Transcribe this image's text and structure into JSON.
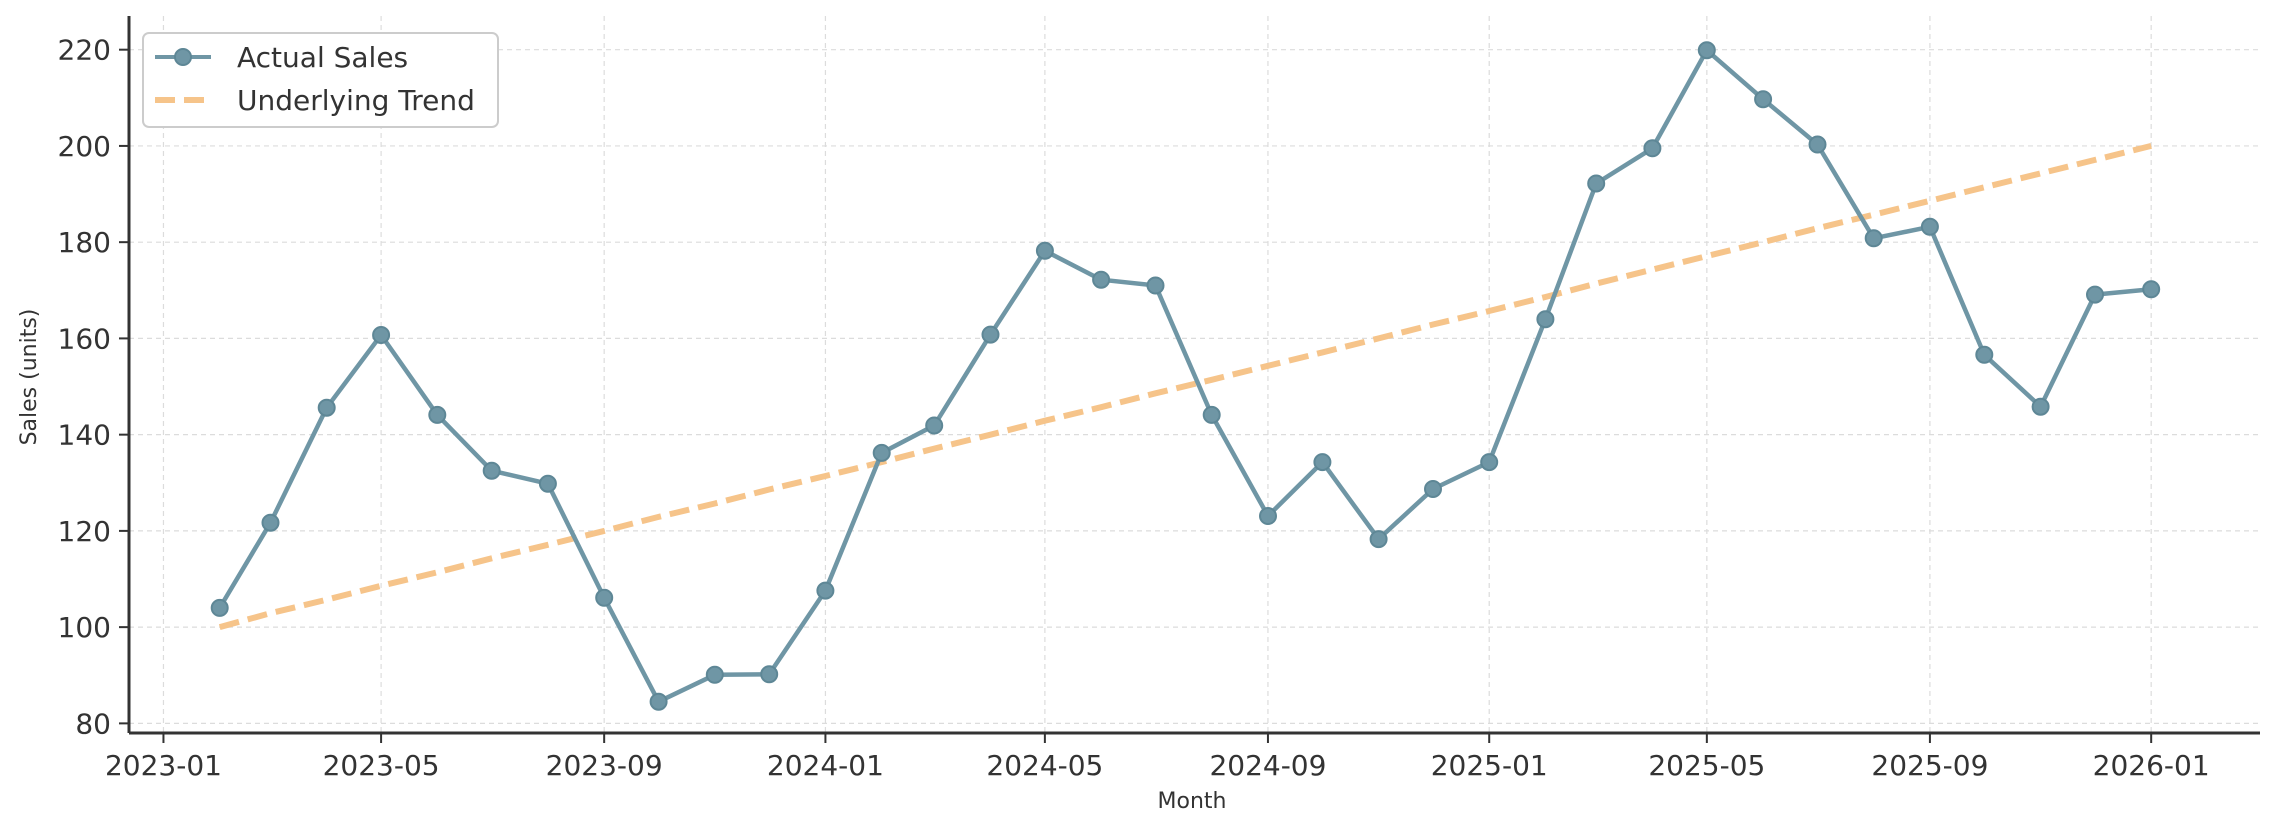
{
  "chart_data": {
    "type": "line",
    "title": "",
    "xlabel": "Month",
    "ylabel": "Sales (units)",
    "x_ticks": [
      "2023-01",
      "2023-05",
      "2023-09",
      "2024-01",
      "2024-05",
      "2024-09",
      "2025-01",
      "2025-05",
      "2025-09",
      "2026-01"
    ],
    "y_ticks": [
      80,
      100,
      120,
      140,
      160,
      180,
      200,
      220
    ],
    "ylim": [
      78,
      227
    ],
    "xlim": [
      "2022-12-13",
      "2026-03-02"
    ],
    "grid": true,
    "legend_position": "top-left",
    "x": [
      "2023-02-01",
      "2023-03-01",
      "2023-04-01",
      "2023-05-01",
      "2023-06-01",
      "2023-07-01",
      "2023-08-01",
      "2023-09-01",
      "2023-10-01",
      "2023-11-01",
      "2023-12-01",
      "2024-01-01",
      "2024-02-01",
      "2024-03-01",
      "2024-04-01",
      "2024-05-01",
      "2024-06-01",
      "2024-07-01",
      "2024-08-01",
      "2024-09-01",
      "2024-10-01",
      "2024-11-01",
      "2024-12-01",
      "2025-01-01",
      "2025-02-01",
      "2025-03-01",
      "2025-04-01",
      "2025-05-01",
      "2025-06-01",
      "2025-07-01",
      "2025-08-01",
      "2025-09-01",
      "2025-10-01",
      "2025-11-01",
      "2025-12-01",
      "2026-01-01"
    ],
    "series": [
      {
        "name": "Actual Sales",
        "color": "#6f96a5",
        "style": "solid-with-markers",
        "values": [
          104,
          121.7,
          145.6,
          160.7,
          144.1,
          132.5,
          129.8,
          106.1,
          84.5,
          90.1,
          90.2,
          107.6,
          136.2,
          141.9,
          160.8,
          178.2,
          172.2,
          171.0,
          144.1,
          123.1,
          134.3,
          118.3,
          128.7,
          134.3,
          164.0,
          192.2,
          199.5,
          219.9,
          209.7,
          200.3,
          180.8,
          183.2,
          156.6,
          145.8,
          169.1,
          170.2
        ]
      },
      {
        "name": "Underlying Trend",
        "color": "#f6c48a",
        "style": "dashed",
        "values": [
          100,
          102.9,
          105.7,
          108.6,
          111.4,
          114.3,
          117.1,
          120.0,
          122.9,
          125.7,
          128.6,
          131.4,
          134.3,
          137.1,
          140.0,
          142.9,
          145.7,
          148.6,
          151.4,
          154.3,
          157.1,
          160.0,
          162.9,
          165.7,
          168.6,
          171.4,
          174.3,
          177.1,
          180.0,
          182.9,
          185.7,
          188.6,
          191.4,
          194.3,
          197.1,
          200.0
        ]
      }
    ]
  },
  "colors": {
    "axis": "#333333",
    "grid": "#dcdcdc"
  }
}
